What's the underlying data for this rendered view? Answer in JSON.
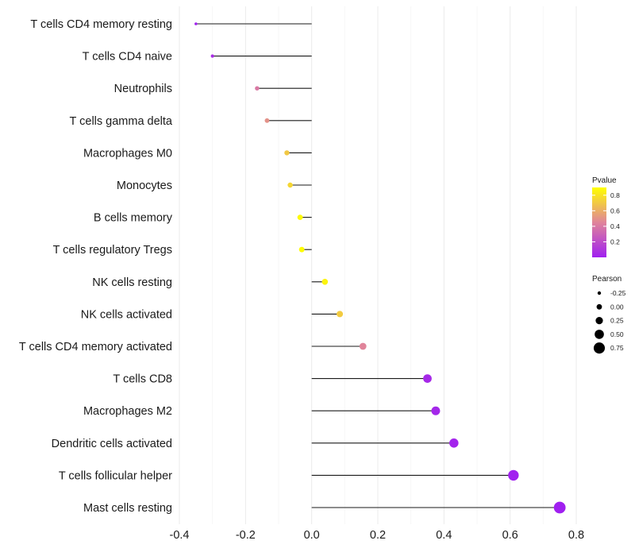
{
  "chart_data": {
    "type": "lollipop",
    "title": "",
    "xlabel": "",
    "ylabel": "",
    "xlim": [
      -0.4,
      0.8
    ],
    "x_ticks": [
      -0.4,
      -0.2,
      0.0,
      0.2,
      0.4,
      0.6,
      0.8
    ],
    "x_tick_labels": [
      "-0.4",
      "-0.2",
      "0.0",
      "0.2",
      "0.4",
      "0.6",
      "0.8"
    ],
    "grid": true,
    "points": [
      {
        "label": "T cells CD4 memory resting",
        "pearson": -0.35,
        "pvalue": 0.01
      },
      {
        "label": "T cells CD4 naive",
        "pearson": -0.3,
        "pvalue": 0.06
      },
      {
        "label": "Neutrophils",
        "pearson": -0.165,
        "pvalue": 0.4
      },
      {
        "label": "T cells gamma delta",
        "pearson": -0.135,
        "pvalue": 0.5
      },
      {
        "label": "Macrophages M0",
        "pearson": -0.075,
        "pvalue": 0.7
      },
      {
        "label": "Monocytes",
        "pearson": -0.065,
        "pvalue": 0.75
      },
      {
        "label": "B cells memory",
        "pearson": -0.035,
        "pvalue": 0.88
      },
      {
        "label": "T cells regulatory  Tregs",
        "pearson": -0.03,
        "pvalue": 0.89
      },
      {
        "label": "NK cells resting",
        "pearson": 0.04,
        "pvalue": 0.86
      },
      {
        "label": "NK cells activated",
        "pearson": 0.085,
        "pvalue": 0.71
      },
      {
        "label": "T cells CD4 memory activated",
        "pearson": 0.155,
        "pvalue": 0.45
      },
      {
        "label": "T cells CD8",
        "pearson": 0.35,
        "pvalue": 0.04
      },
      {
        "label": "Macrophages M2",
        "pearson": 0.375,
        "pvalue": 0.03
      },
      {
        "label": "Dendritic cells activated",
        "pearson": 0.43,
        "pvalue": 0.02
      },
      {
        "label": "T cells follicular helper",
        "pearson": 0.61,
        "pvalue": 0.005
      },
      {
        "label": "Mast cells resting",
        "pearson": 0.75,
        "pvalue": 0.001
      }
    ],
    "legend_color": {
      "title": "Pvalue",
      "ticks": [
        0.2,
        0.4,
        0.6,
        0.8
      ],
      "tick_labels": [
        "0.2",
        "0.4",
        "0.6",
        "0.8"
      ],
      "range": [
        0.0,
        0.9
      ],
      "low_color": "#a020f0",
      "mid_color": "#e0849a",
      "high_color": "#ffff00",
      "placement": "right"
    },
    "legend_size": {
      "title": "Pearson",
      "values": [
        -0.25,
        0.0,
        0.25,
        0.5,
        0.75
      ],
      "labels": [
        "-0.25",
        "0.00",
        "0.25",
        "0.50",
        "0.75"
      ],
      "placement": "right"
    }
  }
}
